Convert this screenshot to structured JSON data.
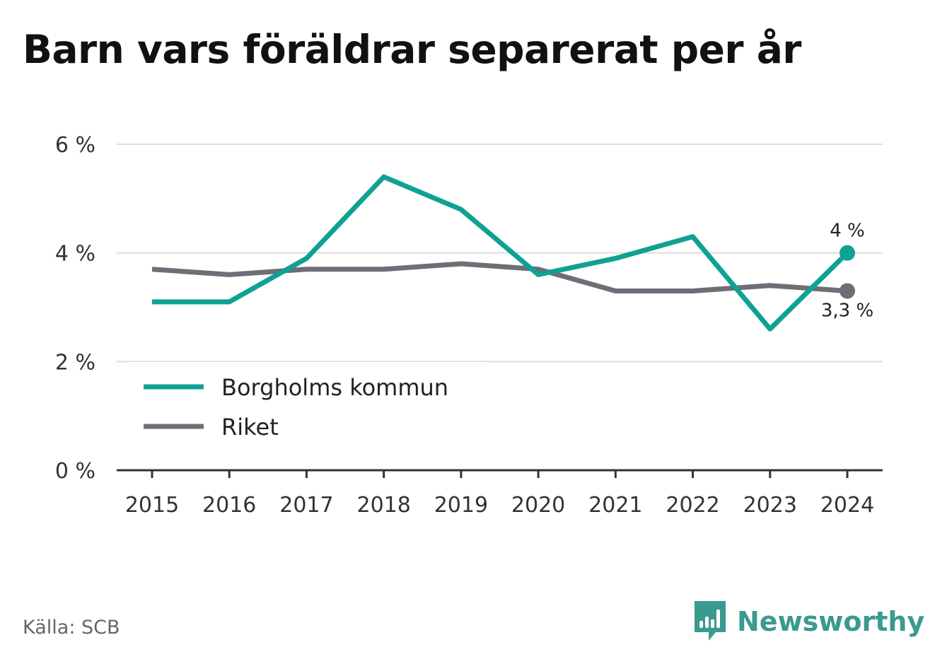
{
  "title": "Barn vars föräldrar separerat per år",
  "source": "Källa: SCB",
  "brand": "Newsworthy",
  "colors": {
    "borgholm": "#0ea293",
    "riket": "#6f6d76",
    "grid": "#dddddd",
    "axis": "#333333",
    "brand": "#3a9a8e"
  },
  "chart_data": {
    "type": "line",
    "x": [
      "2015",
      "2016",
      "2017",
      "2018",
      "2019",
      "2020",
      "2021",
      "2022",
      "2023",
      "2024"
    ],
    "ylim": [
      0,
      6
    ],
    "yticks": [
      0,
      2,
      4,
      6
    ],
    "ytick_labels": [
      "0 %",
      "2 %",
      "4 %",
      "6 %"
    ],
    "grid": true,
    "legend_position": "lower-left",
    "series": [
      {
        "name": "Borgholms kommun",
        "color": "#0ea293",
        "values": [
          3.1,
          3.1,
          3.9,
          5.4,
          4.8,
          3.6,
          3.9,
          4.3,
          2.6,
          4.0
        ],
        "end_label": "4 %"
      },
      {
        "name": "Riket",
        "color": "#6f6d76",
        "values": [
          3.7,
          3.6,
          3.7,
          3.7,
          3.8,
          3.7,
          3.3,
          3.3,
          3.4,
          3.3
        ],
        "end_label": "3,3 %"
      }
    ]
  }
}
